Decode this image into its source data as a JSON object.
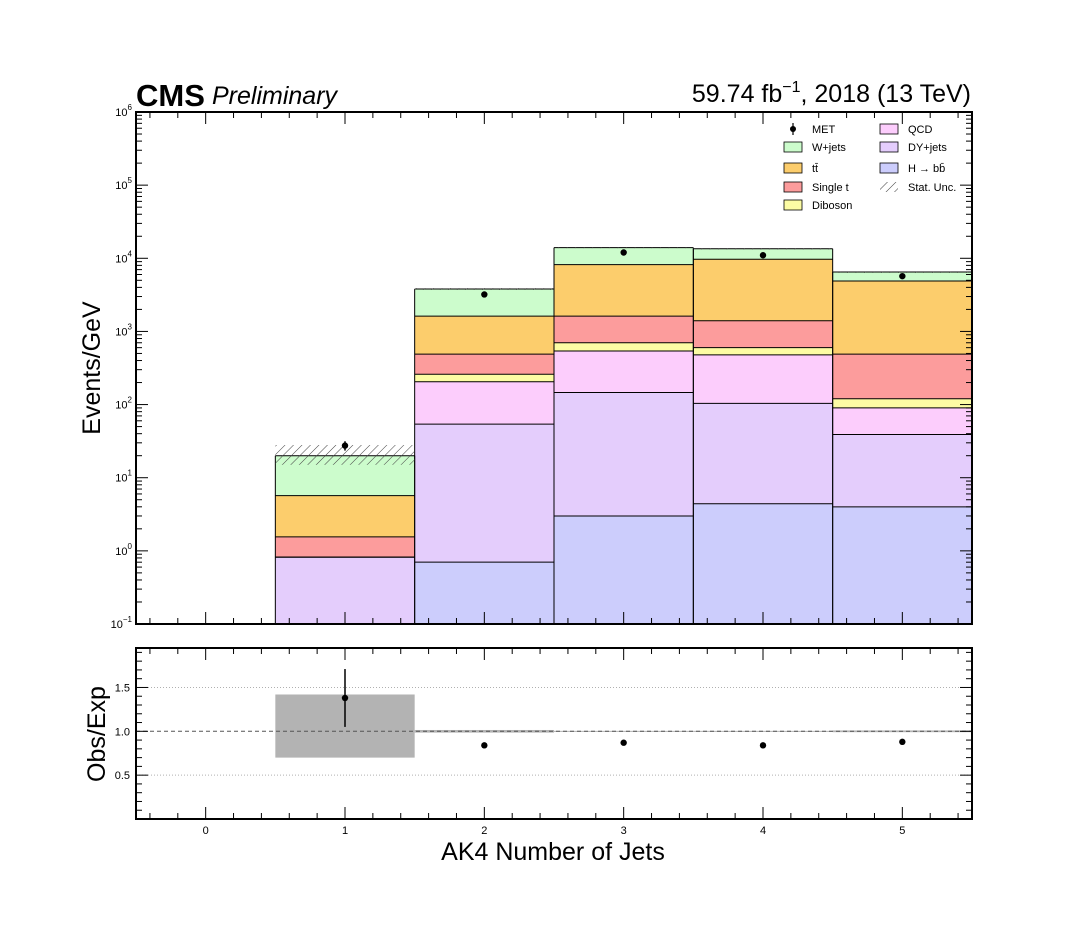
{
  "header": {
    "cms": "CMS",
    "preliminary": "Preliminary",
    "lumi_value": "59.74 fb",
    "lumi_exp": "−1",
    "lumi_rest": ", 2018 (13 TeV)"
  },
  "colors": {
    "H_bb": "#cccdfc",
    "DY_jets": "#e4cdfc",
    "QCD": "#fccdfc",
    "Diboson": "#fcfca4",
    "Single_t": "#fc9c9c",
    "ttbar": "#fccd6c",
    "W_jets": "#ccfccc",
    "unc": "#444444",
    "ratio_band": "#b3b3b3"
  },
  "chart_data": [
    {
      "type": "bar",
      "stacked": true,
      "ylabel": "Events/GeV",
      "yscale": "log",
      "ylim": [
        0.1,
        1000000
      ],
      "xlim": [
        -0.5,
        5.5
      ],
      "x": [
        0,
        1,
        2,
        3,
        4,
        5
      ],
      "yticks": [
        {
          "base": "10",
          "exp": "−1",
          "v": 0.1
        },
        {
          "base": "10",
          "exp": "0",
          "v": 1
        },
        {
          "base": "10",
          "exp": "1",
          "v": 10
        },
        {
          "base": "10",
          "exp": "2",
          "v": 100
        },
        {
          "base": "10",
          "exp": "3",
          "v": 1000
        },
        {
          "base": "10",
          "exp": "4",
          "v": 10000
        },
        {
          "base": "10",
          "exp": "5",
          "v": 100000
        },
        {
          "base": "10",
          "exp": "6",
          "v": 1000000
        }
      ],
      "series": [
        {
          "name": "H → bb̄",
          "color_key": "H_bb",
          "values": [
            0,
            0,
            0.7,
            3.0,
            4.4,
            4.0
          ]
        },
        {
          "name": "DY+jets",
          "color_key": "DY_jets",
          "values": [
            0,
            0.82,
            54,
            146,
            104,
            39
          ]
        },
        {
          "name": "QCD",
          "color_key": "QCD",
          "values": [
            0,
            0.82,
            205,
            540,
            478,
            90
          ]
        },
        {
          "name": "Diboson",
          "color_key": "Diboson",
          "values": [
            0,
            0.82,
            260,
            700,
            600,
            120
          ]
        },
        {
          "name": "Single t",
          "color_key": "Single_t",
          "values": [
            0,
            1.55,
            490,
            1620,
            1400,
            490
          ]
        },
        {
          "name": "tt̄",
          "color_key": "ttbar",
          "values": [
            0,
            5.7,
            1620,
            8200,
            9700,
            4900
          ]
        },
        {
          "name": "W+jets",
          "color_key": "W_jets",
          "values": [
            0,
            20.0,
            3800,
            14000,
            13500,
            6500
          ]
        }
      ],
      "uncertainty": {
        "name": "Stat. Unc.",
        "low": [
          0,
          15.0,
          3700,
          13800,
          13400,
          6480
        ],
        "high": [
          0,
          28.0,
          3900,
          14200,
          13600,
          6520
        ]
      },
      "data": {
        "name": "MET",
        "values": [
          0,
          27.5,
          3200,
          12000,
          11000,
          5700
        ],
        "err_low": [
          0,
          23.5,
          3150,
          11900,
          10900,
          5650
        ],
        "err_high": [
          0,
          31.5,
          3250,
          12100,
          11100,
          5750
        ]
      },
      "legend_order": [
        "MET",
        "W+jets",
        "tt̄",
        "Single t",
        "Diboson",
        "QCD",
        "DY+jets",
        "H → bb̄",
        "Stat. Unc."
      ],
      "legend_position": "top-right"
    },
    {
      "type": "scatter",
      "xlabel": "AK4 Number of Jets",
      "ylabel": "Obs/Exp",
      "ylim": [
        0,
        1.95
      ],
      "xlim": [
        -0.5,
        5.5
      ],
      "xticks": [
        "0",
        "1",
        "2",
        "3",
        "4",
        "5"
      ],
      "yticks": [
        "0.5",
        "1.0",
        "1.5"
      ],
      "x": [
        1,
        2,
        3,
        4,
        5
      ],
      "ratio": [
        1.38,
        0.84,
        0.87,
        0.84,
        0.88
      ],
      "ratio_err": [
        0.33,
        0.01,
        0.01,
        0.01,
        0.01
      ],
      "band": {
        "x": [
          1,
          2,
          3,
          4,
          5
        ],
        "low": [
          0.7,
          0.985,
          0.995,
          0.995,
          0.99
        ],
        "high": [
          1.42,
          1.015,
          1.005,
          1.005,
          1.01
        ]
      },
      "reference_line": 1.0,
      "grid_y": [
        0.5,
        1.5
      ]
    }
  ]
}
